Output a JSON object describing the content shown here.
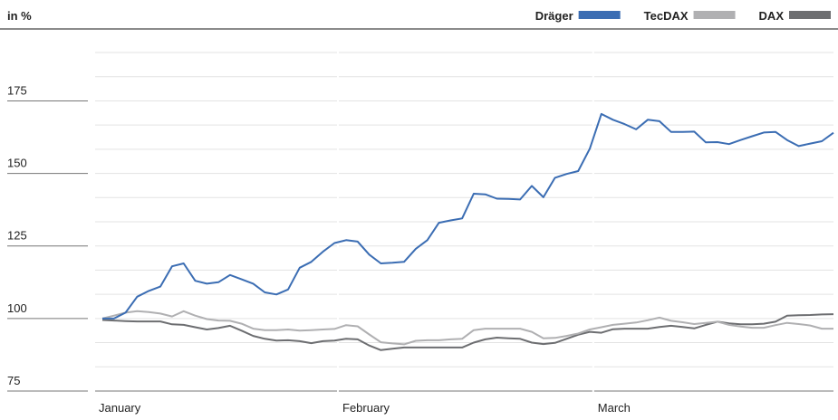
{
  "chart_data": {
    "type": "line",
    "title": "in %",
    "categories": [
      "January",
      null,
      null,
      null,
      null,
      null,
      null,
      null,
      null,
      null,
      null,
      null,
      null,
      null,
      null,
      null,
      null,
      null,
      null,
      null,
      null,
      "February",
      null,
      null,
      null,
      null,
      null,
      null,
      null,
      null,
      null,
      null,
      null,
      null,
      null,
      null,
      null,
      null,
      null,
      null,
      null,
      null,
      null,
      "March",
      null,
      null,
      null,
      null,
      null,
      null,
      null,
      null,
      null,
      null,
      null,
      null,
      null,
      null,
      null,
      null,
      null,
      null,
      null,
      null
    ],
    "series": [
      {
        "name": "Dräger",
        "color": "#3b6db3",
        "values": [
          100,
          100,
          102,
          107.5,
          109.5,
          111,
          118,
          119,
          113,
          112,
          112.5,
          115,
          113.5,
          112,
          109,
          108.3,
          110,
          117.5,
          119.5,
          123,
          126,
          127,
          126.5,
          122,
          119,
          119.2,
          119.5,
          124,
          127,
          133,
          133.8,
          134.5,
          143,
          142.8,
          141.3,
          141.2,
          141,
          145.7,
          141.8,
          148.5,
          149.8,
          150.8,
          158.5,
          170.5,
          168.5,
          167,
          165.2,
          168.5,
          168,
          164.3,
          164.3,
          164.4,
          160.7,
          160.8,
          160.1,
          161.5,
          162.8,
          164.1,
          164.3,
          161.5,
          159.4,
          160.3,
          161.1,
          164
        ]
      },
      {
        "name": "TecDAX",
        "color": "#b0b0b2",
        "values": [
          100,
          101,
          102,
          102.5,
          102.2,
          101.7,
          100.7,
          102.5,
          101,
          99.8,
          99.3,
          99.2,
          98.2,
          96.5,
          96,
          96,
          96.2,
          95.8,
          96,
          96.2,
          96.4,
          97.7,
          97.3,
          94.5,
          91.8,
          91.4,
          91.1,
          92.3,
          92.5,
          92.5,
          92.8,
          93,
          96,
          96.5,
          96.5,
          96.5,
          96.5,
          95.4,
          93.2,
          93.3,
          94,
          94.8,
          96.2,
          97,
          97.8,
          98.2,
          98.6,
          99.4,
          100.3,
          99.2,
          98.7,
          98.1,
          98.5,
          98.9,
          97.8,
          97.2,
          96.8,
          96.8,
          97.7,
          98.5,
          98.1,
          97.6,
          96.5,
          96.5
        ]
      },
      {
        "name": "DAX",
        "color": "#6d6e71",
        "values": [
          99.5,
          99.3,
          99.1,
          99,
          99,
          99,
          98,
          97.8,
          97,
          96.2,
          96.7,
          97.5,
          95.8,
          94,
          93,
          92.4,
          92.5,
          92.2,
          91.5,
          92.2,
          92.4,
          93,
          92.8,
          90.7,
          89.1,
          89.6,
          90,
          90,
          90,
          90,
          90,
          90,
          91.7,
          92.8,
          93.4,
          93.2,
          93,
          91.7,
          91.2,
          91.6,
          93,
          94.4,
          95.4,
          95.1,
          96.3,
          96.5,
          96.5,
          96.5,
          97.1,
          97.5,
          97.1,
          96.6,
          97.8,
          98.9,
          98.3,
          98,
          98,
          98.2,
          98.9,
          101,
          101.1,
          101.2,
          101.4,
          101.5
        ]
      }
    ],
    "ylim": [
      75,
      191.67
    ],
    "yticks": [
      75,
      100,
      125,
      150,
      175
    ],
    "minor_yticks": [
      83.33,
      91.67,
      108.33,
      116.67,
      133.33,
      141.67,
      158.33,
      166.67,
      183.33,
      191.67
    ],
    "grid": true,
    "legend": "top-right"
  }
}
